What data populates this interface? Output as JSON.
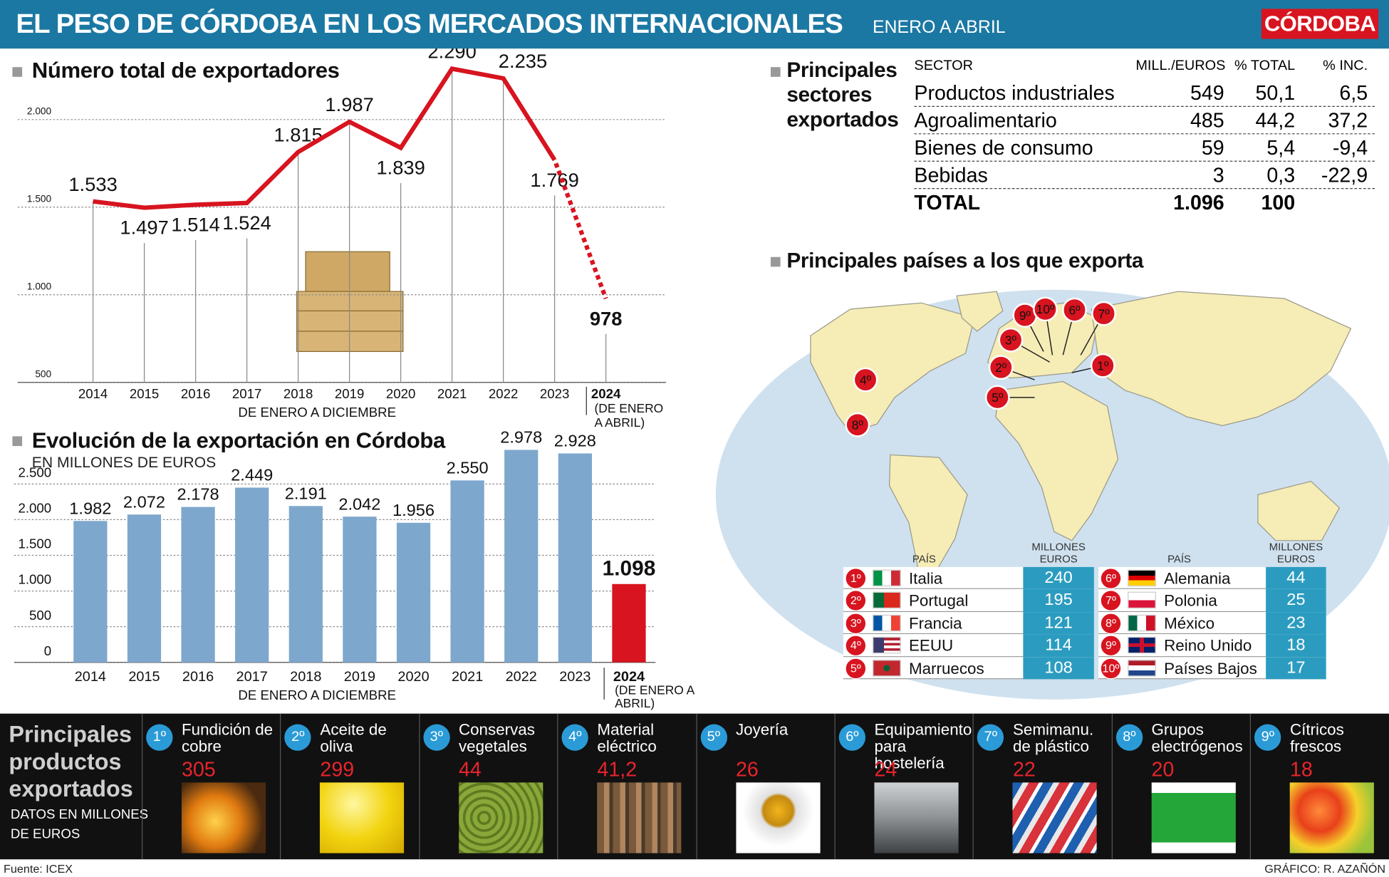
{
  "header": {
    "title": "EL PESO DE CÓRDOBA EN LOS MERCADOS INTERNACIONALES",
    "subtitle": "ENERO A ABRIL",
    "logo": "CÓRDOBA"
  },
  "chart_data": [
    {
      "type": "line",
      "title": "Número total de exportadores",
      "categories": [
        "2014",
        "2015",
        "2016",
        "2017",
        "2018",
        "2019",
        "2020",
        "2021",
        "2022",
        "2023",
        "2024"
      ],
      "values": [
        1533,
        1497,
        1514,
        1524,
        1815,
        1987,
        1839,
        2290,
        2235,
        1769,
        978
      ],
      "value_labels": [
        "1.533",
        "1.497",
        "1.514",
        "1.524",
        "1.815",
        "1.987",
        "1.839",
        "2.290",
        "2.235",
        "1.769",
        "978"
      ],
      "color": "#d7141f",
      "x_label": "DE ENERO A DICIEMBRE",
      "last_category_note": "(DE ENERO A ABRIL)",
      "ylim": [
        500,
        2400
      ],
      "yticks": [
        500,
        {
          "value": 1000,
          "label": "1.000"
        },
        {
          "value": 1500,
          "label": "1.500"
        },
        {
          "value": 2000,
          "label": "2.000"
        }
      ],
      "grid": true
    },
    {
      "type": "bar",
      "title": "Evolución de la exportación en Córdoba",
      "subtitle": "EN MILLONES DE EUROS",
      "categories": [
        "2014",
        "2015",
        "2016",
        "2017",
        "2018",
        "2019",
        "2020",
        "2021",
        "2022",
        "2023",
        "2024"
      ],
      "values": [
        1982,
        2072,
        2178,
        2449,
        2191,
        2042,
        1956,
        2550,
        2978,
        2928,
        1098
      ],
      "value_labels": [
        "1.982",
        "2.072",
        "2.178",
        "2.449",
        "2.191",
        "2.042",
        "1.956",
        "2.550",
        "2.978",
        "2.928",
        "1.098"
      ],
      "colors": [
        "#7ea7cd",
        "#7ea7cd",
        "#7ea7cd",
        "#7ea7cd",
        "#7ea7cd",
        "#7ea7cd",
        "#7ea7cd",
        "#7ea7cd",
        "#7ea7cd",
        "#7ea7cd",
        "#d7141f"
      ],
      "x_label": "DE ENERO A DICIEMBRE",
      "last_category_note": "(DE ENERO A ABRIL)",
      "ylim": [
        0,
        3000
      ],
      "yticks": [
        0,
        500,
        {
          "value": 1000,
          "label": "1.000"
        },
        {
          "value": 1500,
          "label": "1.500"
        },
        {
          "value": 2000,
          "label": "2.000"
        },
        {
          "value": 2500,
          "label": "2.500"
        }
      ],
      "grid": true
    }
  ],
  "sectors": {
    "title": "Principales sectores exportados",
    "columns": [
      "SECTOR",
      "MILL./EUROS",
      "% TOTAL",
      "% INC."
    ],
    "rows": [
      [
        "Productos industriales",
        549,
        "50,1",
        "6,5"
      ],
      [
        "Agroalimentario",
        485,
        "44,2",
        "37,2"
      ],
      [
        "Bienes de consumo",
        59,
        "5,4",
        "-9,4"
      ],
      [
        "Bebidas",
        3,
        "0,3",
        "-22,9"
      ]
    ],
    "total": [
      "TOTAL",
      "1.096",
      100
    ]
  },
  "countries": {
    "title": "Principales países a los que exporta",
    "tables": [
      {
        "header_country": "PAÍS",
        "header_value": "MILLONES EUROS",
        "rows": [
          {
            "rank": "1º",
            "name": "Italia",
            "value": 240
          },
          {
            "rank": "2º",
            "name": "Portugal",
            "value": 195
          },
          {
            "rank": "3º",
            "name": "Francia",
            "value": 121
          },
          {
            "rank": "4º",
            "name": "EEUU",
            "value": 114
          },
          {
            "rank": "5º",
            "name": "Marruecos",
            "value": 108
          }
        ]
      },
      {
        "header_country": "PAÍS",
        "header_value": "MILLONES EUROS",
        "rows": [
          {
            "rank": "6º",
            "name": "Alemania",
            "value": 44
          },
          {
            "rank": "7º",
            "name": "Polonia",
            "value": 25
          },
          {
            "rank": "8º",
            "name": "México",
            "value": 23
          },
          {
            "rank": "9º",
            "name": "Reino Unido",
            "value": 18
          },
          {
            "rank": "10º",
            "name": "Países Bajos",
            "value": 17
          }
        ]
      }
    ]
  },
  "products": {
    "title": "Principales productos exportados",
    "note": "DATOS EN MILLONES DE EUROS",
    "items": [
      {
        "rank": "1º",
        "name": "Fundición de cobre",
        "value": 305
      },
      {
        "rank": "2º",
        "name": "Aceite de oliva",
        "value": 299
      },
      {
        "rank": "3º",
        "name": "Conservas vegetales",
        "value": 44
      },
      {
        "rank": "4º",
        "name": "Material eléctrico",
        "value": "41,2"
      },
      {
        "rank": "5º",
        "name": "Joyería",
        "value": 26
      },
      {
        "rank": "6º",
        "name": "Equipamiento para hostelería",
        "value": 24
      },
      {
        "rank": "7º",
        "name": "Semimanu. de plástico",
        "value": 22
      },
      {
        "rank": "8º",
        "name": "Grupos electrógenos",
        "value": 20
      },
      {
        "rank": "9º",
        "name": "Cítricos frescos",
        "value": 18
      }
    ]
  },
  "footer": {
    "source": "Fuente: ICEX",
    "credit": "GRÁFICO: R. AZAÑÓN"
  }
}
